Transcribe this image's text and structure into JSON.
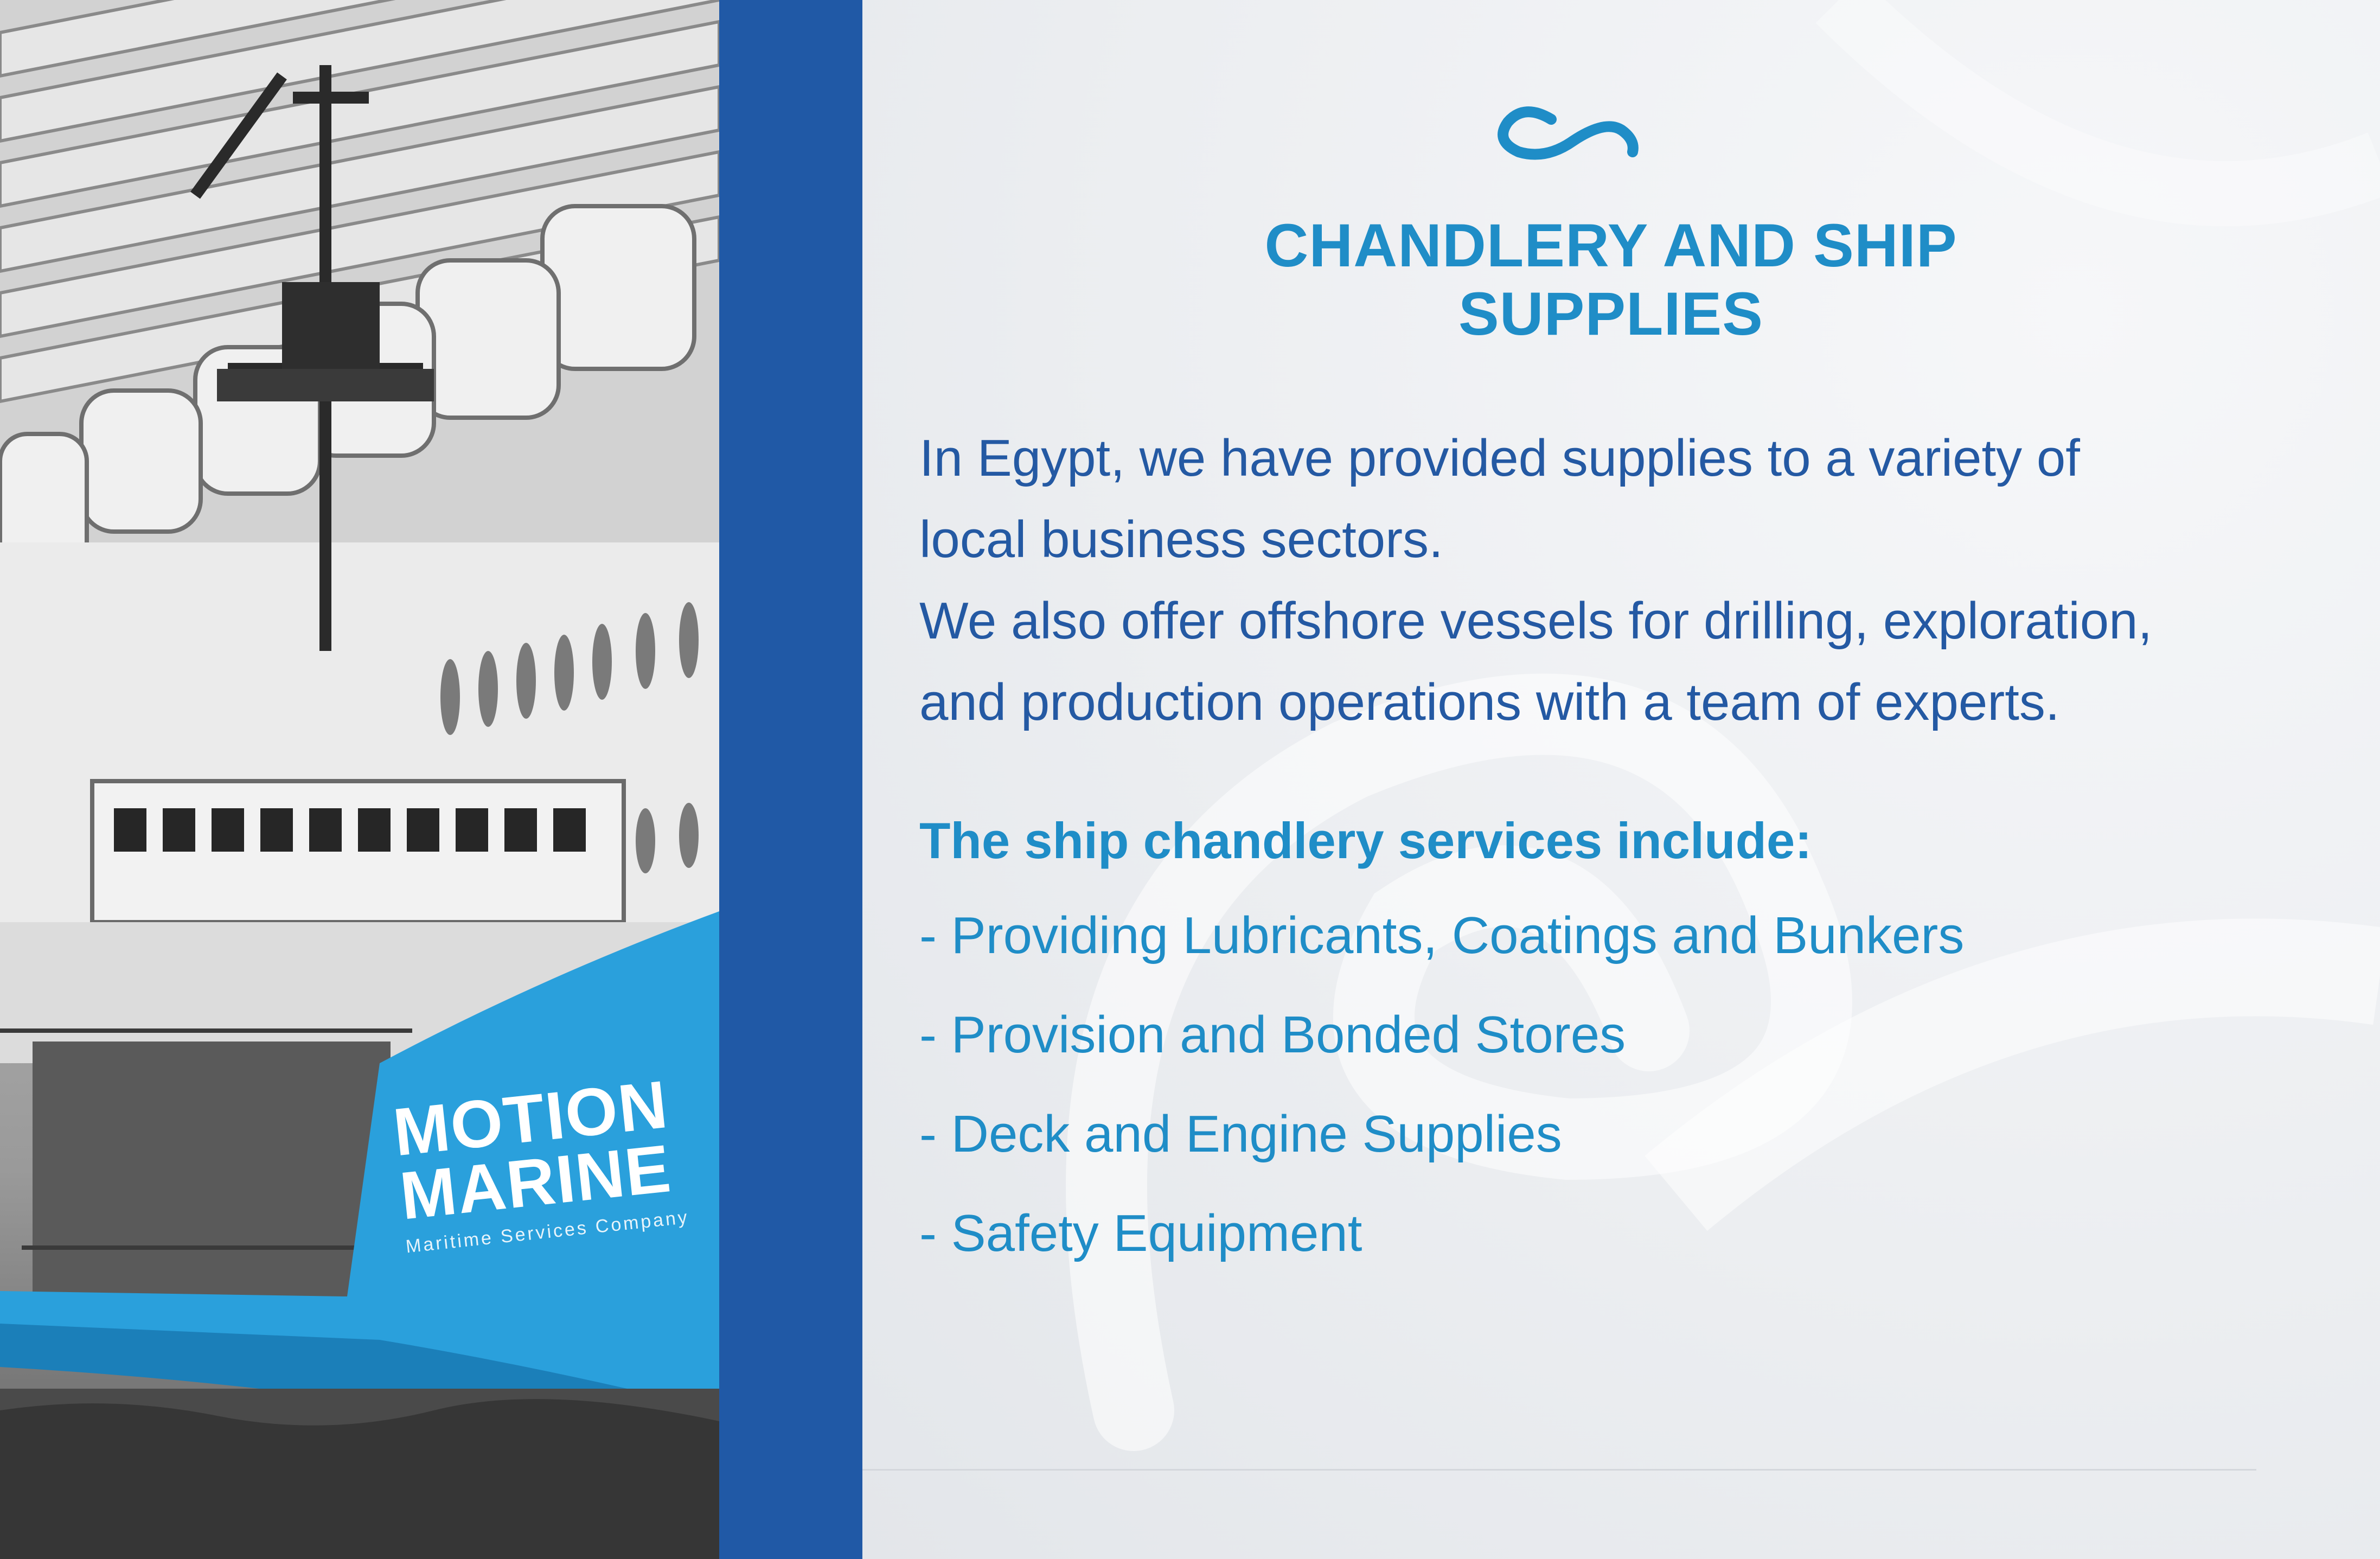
{
  "title": {
    "line1": "CHANDLERY AND SHIP",
    "line2": "SUPPLIES"
  },
  "intro": {
    "lines": [
      "In Egypt, we have provided supplies to a variety of",
      "local business sectors.",
      "We also offer offshore vessels for drilling, exploration,",
      "and production operations with a team of experts."
    ]
  },
  "services": {
    "heading": "The ship chandlery services include:",
    "items": [
      "- Providing Lubricants, Coatings and Bunkers",
      "- Provision and Bonded Stores",
      "- Deck and Engine Supplies",
      "- Safety Equipment"
    ]
  },
  "photo_brand": {
    "line1": "MOTION",
    "line2": "MARINE",
    "tagline": "Maritime Services Company"
  },
  "colors": {
    "accent_blue": "#1f8dc7",
    "text_navy": "#2459a3",
    "stripe_blue": "#2059a6",
    "hull_blue": "#2aa0dc"
  },
  "icons": {
    "logo_mark": "wave-logo-icon"
  }
}
